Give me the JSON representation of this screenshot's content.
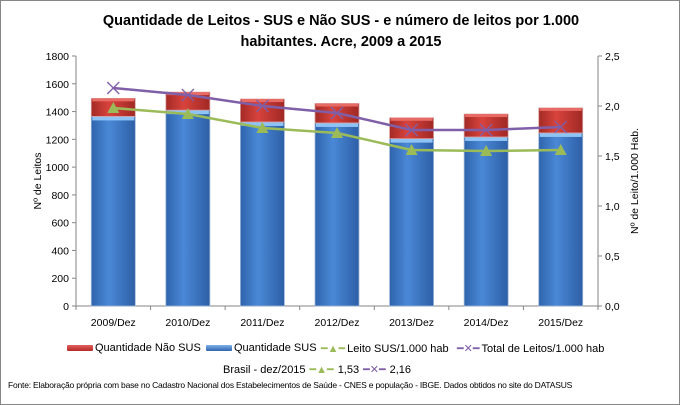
{
  "chart_data": {
    "type": "bar",
    "title": "Quantidade de Leitos - SUS e Não SUS - e número de leitos por 1.000 habitantes. Acre, 2009 a 2015",
    "title_lines": [
      "Quantidade de Leitos - SUS e Não SUS - e número de leitos por 1.000",
      "habitantes. Acre, 2009 a 2015"
    ],
    "categories": [
      "2009/Dez",
      "2010/Dez",
      "2011/Dez",
      "2012/Dez",
      "2013/Dez",
      "2014/Dez",
      "2015/Dez"
    ],
    "ylabel": "Nº de Leitos",
    "y2label": "Nº de Leito/1.000 Hab.",
    "ylim": [
      0,
      1800
    ],
    "y2lim": [
      0,
      2.5
    ],
    "yticks": [
      "0",
      "200",
      "400",
      "600",
      "800",
      "1000",
      "1200",
      "1400",
      "1600",
      "1800"
    ],
    "y2ticks": [
      "0,0",
      "0,5",
      "1,0",
      "1,5",
      "2,0",
      "2,5"
    ],
    "grid": false,
    "legend_position": "bottom",
    "series": [
      {
        "name": "Quantidade Não SUS",
        "kind": "stacked-bar",
        "axis": "left",
        "color": "#c0392b",
        "values": [
          130,
          130,
          165,
          140,
          150,
          165,
          180
        ]
      },
      {
        "name": "Quantidade SUS",
        "kind": "stacked-bar",
        "axis": "left",
        "color": "#3f7fcf",
        "values": [
          1365,
          1410,
          1325,
          1318,
          1205,
          1217,
          1246
        ]
      },
      {
        "name": "Leito SUS/1.000 hab",
        "kind": "line",
        "marker": "triangle",
        "axis": "right",
        "color": "#9bbb59",
        "values": [
          1.98,
          1.92,
          1.78,
          1.73,
          1.56,
          1.55,
          1.56
        ]
      },
      {
        "name": "Total de Leitos/1.000 hab",
        "kind": "line",
        "marker": "x",
        "axis": "right",
        "color": "#7f5fa8",
        "values": [
          2.18,
          2.11,
          2.0,
          1.93,
          1.76,
          1.76,
          1.79
        ]
      }
    ],
    "reference": {
      "label": "Brasil -  dez/2015",
      "sus_value": "1,53",
      "total_value": "2,16"
    }
  },
  "source": "Fonte: Elaboração própria com base no  Cadastro Nacional dos Estabelecimentos de Saúde - CNES e população - IBGE. Dados obtidos no site do DATASUS"
}
